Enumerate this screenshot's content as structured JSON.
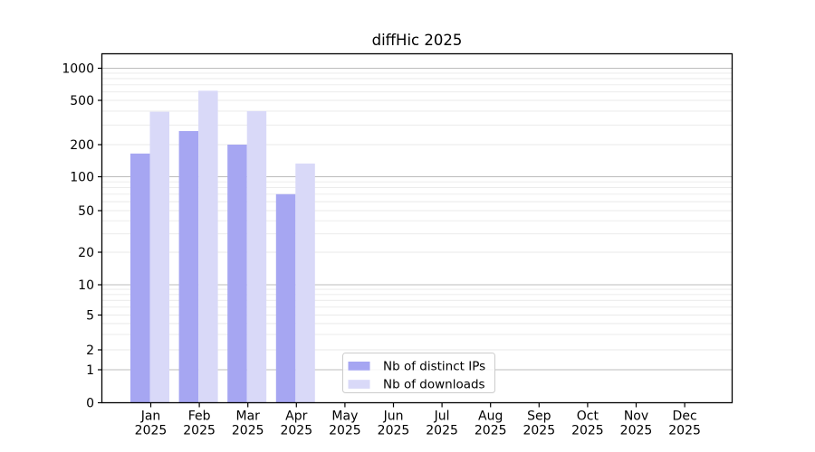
{
  "chart_data": {
    "type": "bar",
    "title": "diffHic 2025",
    "x_categories": [
      {
        "month": "Jan",
        "year": "2025"
      },
      {
        "month": "Feb",
        "year": "2025"
      },
      {
        "month": "Mar",
        "year": "2025"
      },
      {
        "month": "Apr",
        "year": "2025"
      },
      {
        "month": "May",
        "year": "2025"
      },
      {
        "month": "Jun",
        "year": "2025"
      },
      {
        "month": "Jul",
        "year": "2025"
      },
      {
        "month": "Aug",
        "year": "2025"
      },
      {
        "month": "Sep",
        "year": "2025"
      },
      {
        "month": "Oct",
        "year": "2025"
      },
      {
        "month": "Nov",
        "year": "2025"
      },
      {
        "month": "Dec",
        "year": "2025"
      }
    ],
    "series": [
      {
        "name": "Nb of distinct IPs",
        "color": "#a6a6f2",
        "values": [
          165,
          265,
          200,
          70,
          null,
          null,
          null,
          null,
          null,
          null,
          null,
          null
        ]
      },
      {
        "name": "Nb of downloads",
        "color": "#d9d9f8",
        "values": [
          395,
          615,
          400,
          133,
          null,
          null,
          null,
          null,
          null,
          null,
          null,
          null
        ]
      }
    ],
    "y_axis": {
      "scale": "symlog",
      "ticks": [
        0,
        1,
        2,
        5,
        10,
        20,
        50,
        100,
        200,
        500,
        1000
      ],
      "range": [
        0,
        1400
      ]
    },
    "grid": {
      "major": true,
      "minor": true
    },
    "legend": {
      "location": "lower center inside"
    },
    "colors": {
      "major_grid": "#bcbcbc",
      "minor_grid": "#e9e9e9",
      "axis": "#000000",
      "legend_border": "#cccccc"
    }
  }
}
